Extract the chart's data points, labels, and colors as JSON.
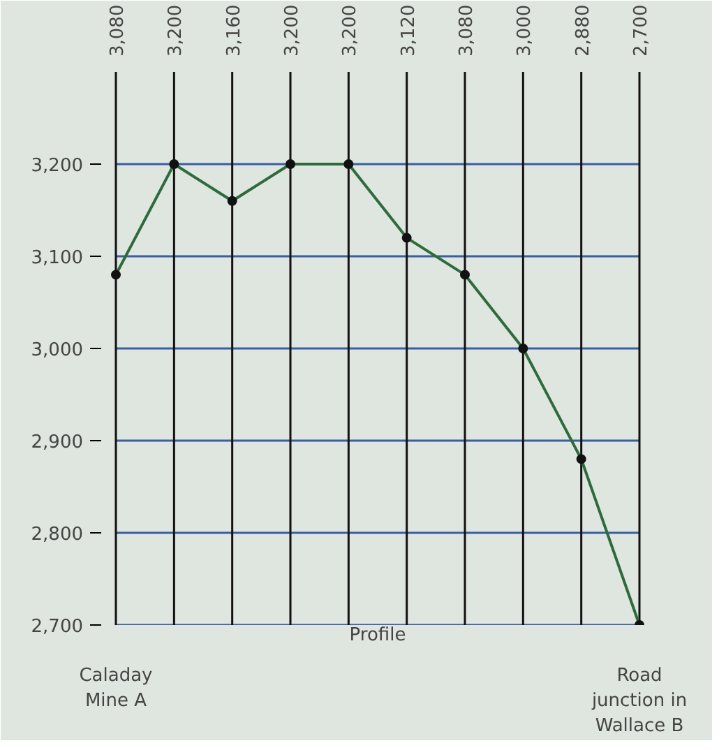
{
  "chart_data": {
    "type": "line",
    "xlabel": "Profile",
    "categories": [
      "3,080",
      "3,200",
      "3,160",
      "3,200",
      "3,200",
      "3,120",
      "3,080",
      "3,000",
      "2,880",
      "2,700"
    ],
    "ylim": [
      2700,
      3300
    ],
    "yticks": [
      {
        "value": 2700,
        "label": "2,700"
      },
      {
        "value": 2800,
        "label": "2,800"
      },
      {
        "value": 2900,
        "label": "2,900"
      },
      {
        "value": 3000,
        "label": "3,000"
      },
      {
        "value": 3100,
        "label": "3,100"
      },
      {
        "value": 3200,
        "label": "3,200"
      }
    ],
    "grid": true,
    "marker": "circle",
    "series": [
      {
        "color": "#2e6b3c",
        "values": [
          3080,
          3200,
          3160,
          3200,
          3200,
          3120,
          3080,
          3000,
          2880,
          2700
        ]
      }
    ],
    "annotations": [
      "Caladay Mine A",
      "Road junction in Wallace B"
    ]
  }
}
